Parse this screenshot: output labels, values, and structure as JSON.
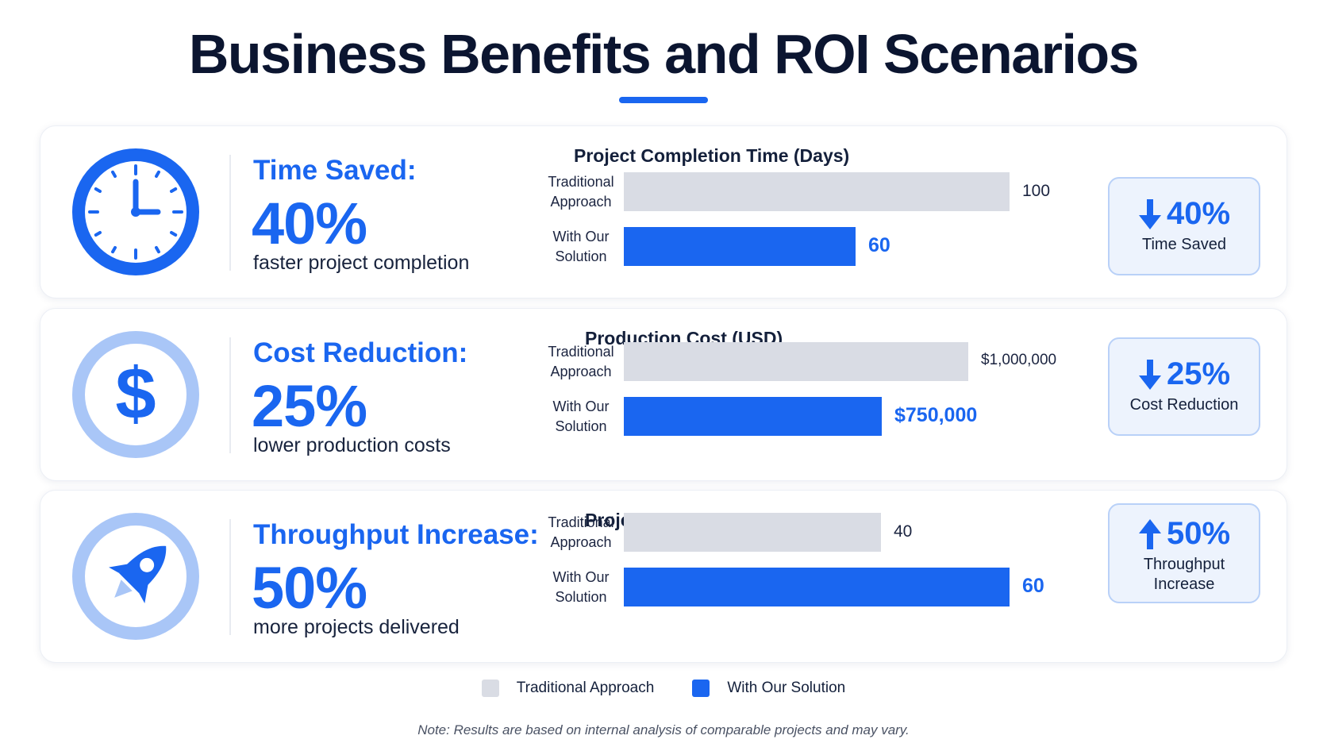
{
  "title": "Business Benefits and ROI Scenarios",
  "colors": {
    "accent": "#1a66f0",
    "traditional": "#d9dce4",
    "light_accent": "#a9c6f7"
  },
  "metrics": [
    {
      "icon": "clock-icon",
      "label": "Time Saved:",
      "value": "40%",
      "description": "faster project completion",
      "badge": {
        "direction": "down",
        "value": "40%",
        "label": "Time Saved"
      }
    },
    {
      "icon": "dollar-icon",
      "label": "Cost Reduction:",
      "value": "25%",
      "description": "lower production costs",
      "badge": {
        "direction": "down",
        "value": "25%",
        "label": "Cost Reduction"
      }
    },
    {
      "icon": "rocket-icon",
      "label": "Throughput Increase:",
      "value": "50%",
      "description": "more projects delivered",
      "badge": {
        "direction": "up",
        "value": "50%",
        "label": "Throughput Increase"
      }
    }
  ],
  "chart_data": [
    {
      "type": "bar",
      "orientation": "horizontal",
      "title": "Project Completion Time (Days)",
      "categories": [
        "Traditional Approach",
        "With Our Solution"
      ],
      "values": [
        100,
        60
      ],
      "value_labels": [
        "100",
        "60"
      ],
      "xlim": [
        0,
        100
      ]
    },
    {
      "type": "bar",
      "orientation": "horizontal",
      "title": "Production Cost (USD)",
      "categories": [
        "Traditional Approach",
        "With Our Solution"
      ],
      "values": [
        1000000,
        750000
      ],
      "value_labels": [
        "$1,000,000",
        "$750,000"
      ],
      "xlim": [
        0,
        1120000
      ]
    },
    {
      "type": "bar",
      "orientation": "horizontal",
      "title": "Projects Delivered (Per Year)",
      "categories": [
        "Traditional Approach",
        "With Our Solution"
      ],
      "values": [
        40,
        60
      ],
      "value_labels": [
        "40",
        "60"
      ],
      "xlim": [
        0,
        60
      ]
    }
  ],
  "category_labels": [
    [
      "Traditional",
      "Approach"
    ],
    [
      "With Our",
      "Solution"
    ]
  ],
  "legend": [
    {
      "label": "Traditional Approach",
      "color": "#d9dce4"
    },
    {
      "label": "With Our Solution",
      "color": "#1a66f0"
    }
  ],
  "note": "Note: Results are based on internal analysis of comparable projects and may vary."
}
